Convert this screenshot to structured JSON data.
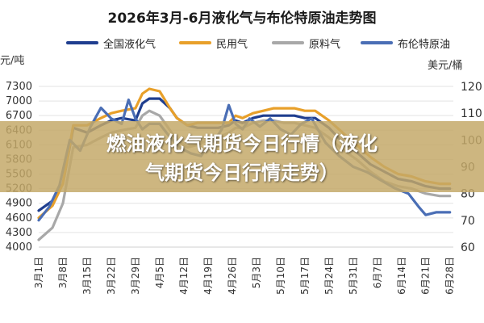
{
  "chart_data": {
    "type": "line",
    "title": "2026年3月-6月液化气与布伦特原油走势图",
    "y_left_unit": "元/吨",
    "y_right_unit": "美元/桶",
    "y_left_ticks": [
      "7300",
      "7000",
      "6700",
      "6400",
      "6100",
      "5800",
      "5500",
      "5200",
      "4900",
      "4600",
      "4300",
      "4000"
    ],
    "y_left_range": [
      4000,
      7300
    ],
    "y_right_ticks": [
      "120",
      "110",
      "100",
      "90",
      "80",
      "70",
      "60"
    ],
    "y_right_range": [
      60,
      120
    ],
    "x_tick_labels": [
      "3月1日",
      "3月8日",
      "3月15日",
      "3月22日",
      "3月29日",
      "4月5日",
      "4月12日",
      "4月19日",
      "4月26日",
      "5月3日",
      "5月10日",
      "5月17日",
      "5月24日",
      "5月31日",
      "6月7日",
      "6月14日",
      "6月21日",
      "6月28日"
    ],
    "x_range": [
      "3月1日",
      "6月30日"
    ],
    "grid": "horizontal",
    "legend_position": "top",
    "series": [
      {
        "name": "全国液化气",
        "color": "#1f3e8f",
        "axis": "left",
        "x": [
          0,
          4,
          7,
          10,
          14,
          18,
          21,
          24,
          28,
          30,
          32,
          35,
          38,
          40,
          43,
          46,
          49,
          52,
          55,
          57,
          59,
          62,
          65,
          68,
          71,
          74,
          77,
          80,
          84,
          88,
          92,
          96,
          100,
          104,
          108,
          112,
          116,
          119
        ],
        "values": [
          4750,
          4950,
          5300,
          6450,
          6350,
          6500,
          6600,
          6650,
          6600,
          6950,
          7050,
          7050,
          6850,
          6650,
          6500,
          6450,
          6450,
          6450,
          6500,
          6600,
          6550,
          6650,
          6700,
          6700,
          6700,
          6700,
          6650,
          6650,
          6450,
          6150,
          5950,
          5700,
          5550,
          5400,
          5350,
          5250,
          5200,
          5200
        ]
      },
      {
        "name": "民用气",
        "color": "#e8a02a",
        "axis": "left",
        "x": [
          0,
          4,
          7,
          10,
          14,
          18,
          21,
          24,
          28,
          30,
          32,
          35,
          38,
          40,
          43,
          46,
          49,
          52,
          55,
          57,
          59,
          62,
          65,
          68,
          71,
          74,
          77,
          80,
          84,
          88,
          92,
          96,
          100,
          104,
          108,
          112,
          116,
          119
        ],
        "values": [
          4600,
          4850,
          5300,
          6500,
          6500,
          6650,
          6750,
          6800,
          6850,
          7150,
          7250,
          7200,
          6850,
          6650,
          6500,
          6550,
          6550,
          6550,
          6550,
          6700,
          6650,
          6750,
          6800,
          6850,
          6850,
          6850,
          6800,
          6800,
          6600,
          6350,
          6100,
          5850,
          5650,
          5500,
          5450,
          5350,
          5300,
          5300
        ]
      },
      {
        "name": "原料气",
        "color": "#a8a8a8",
        "axis": "left",
        "x": [
          0,
          4,
          7,
          10,
          14,
          18,
          21,
          24,
          28,
          30,
          32,
          35,
          38,
          40,
          43,
          46,
          49,
          52,
          55,
          57,
          59,
          62,
          65,
          68,
          71,
          74,
          77,
          80,
          84,
          88,
          92,
          96,
          100,
          104,
          108,
          112,
          116,
          119
        ],
        "values": [
          4150,
          4400,
          4900,
          6050,
          6100,
          6250,
          6350,
          6400,
          6450,
          6700,
          6800,
          6700,
          6400,
          6200,
          6050,
          6100,
          6200,
          6250,
          6350,
          6450,
          6450,
          6550,
          6600,
          6600,
          6550,
          6550,
          6500,
          6450,
          6250,
          6000,
          5800,
          5550,
          5350,
          5250,
          5200,
          5100,
          5050,
          5050
        ]
      },
      {
        "name": "布伦特原油",
        "color": "#4a6eb5",
        "axis": "right",
        "x": [
          0,
          3,
          6,
          9,
          12,
          15,
          18,
          21,
          24,
          26,
          28,
          30,
          32,
          35,
          38,
          41,
          44,
          47,
          49,
          51,
          53,
          55,
          57,
          59,
          61,
          64,
          67,
          70,
          73,
          76,
          79,
          83,
          87,
          91,
          95,
          99,
          103,
          107,
          110,
          112,
          115,
          119
        ],
        "values": [
          70,
          75,
          83,
          100,
          96,
          105,
          112,
          108,
          106,
          115,
          108,
          104,
          106,
          106,
          101,
          97,
          95,
          94,
          98,
          100,
          104,
          113,
          106,
          104,
          108,
          105,
          108,
          104,
          102,
          106,
          108,
          99,
          94,
          90,
          88,
          85,
          82,
          80,
          75,
          72,
          73,
          73
        ]
      }
    ]
  },
  "banner": {
    "line1": "燃油液化气期货今日行情（液化",
    "line2": "气期货今日行情走势）"
  }
}
